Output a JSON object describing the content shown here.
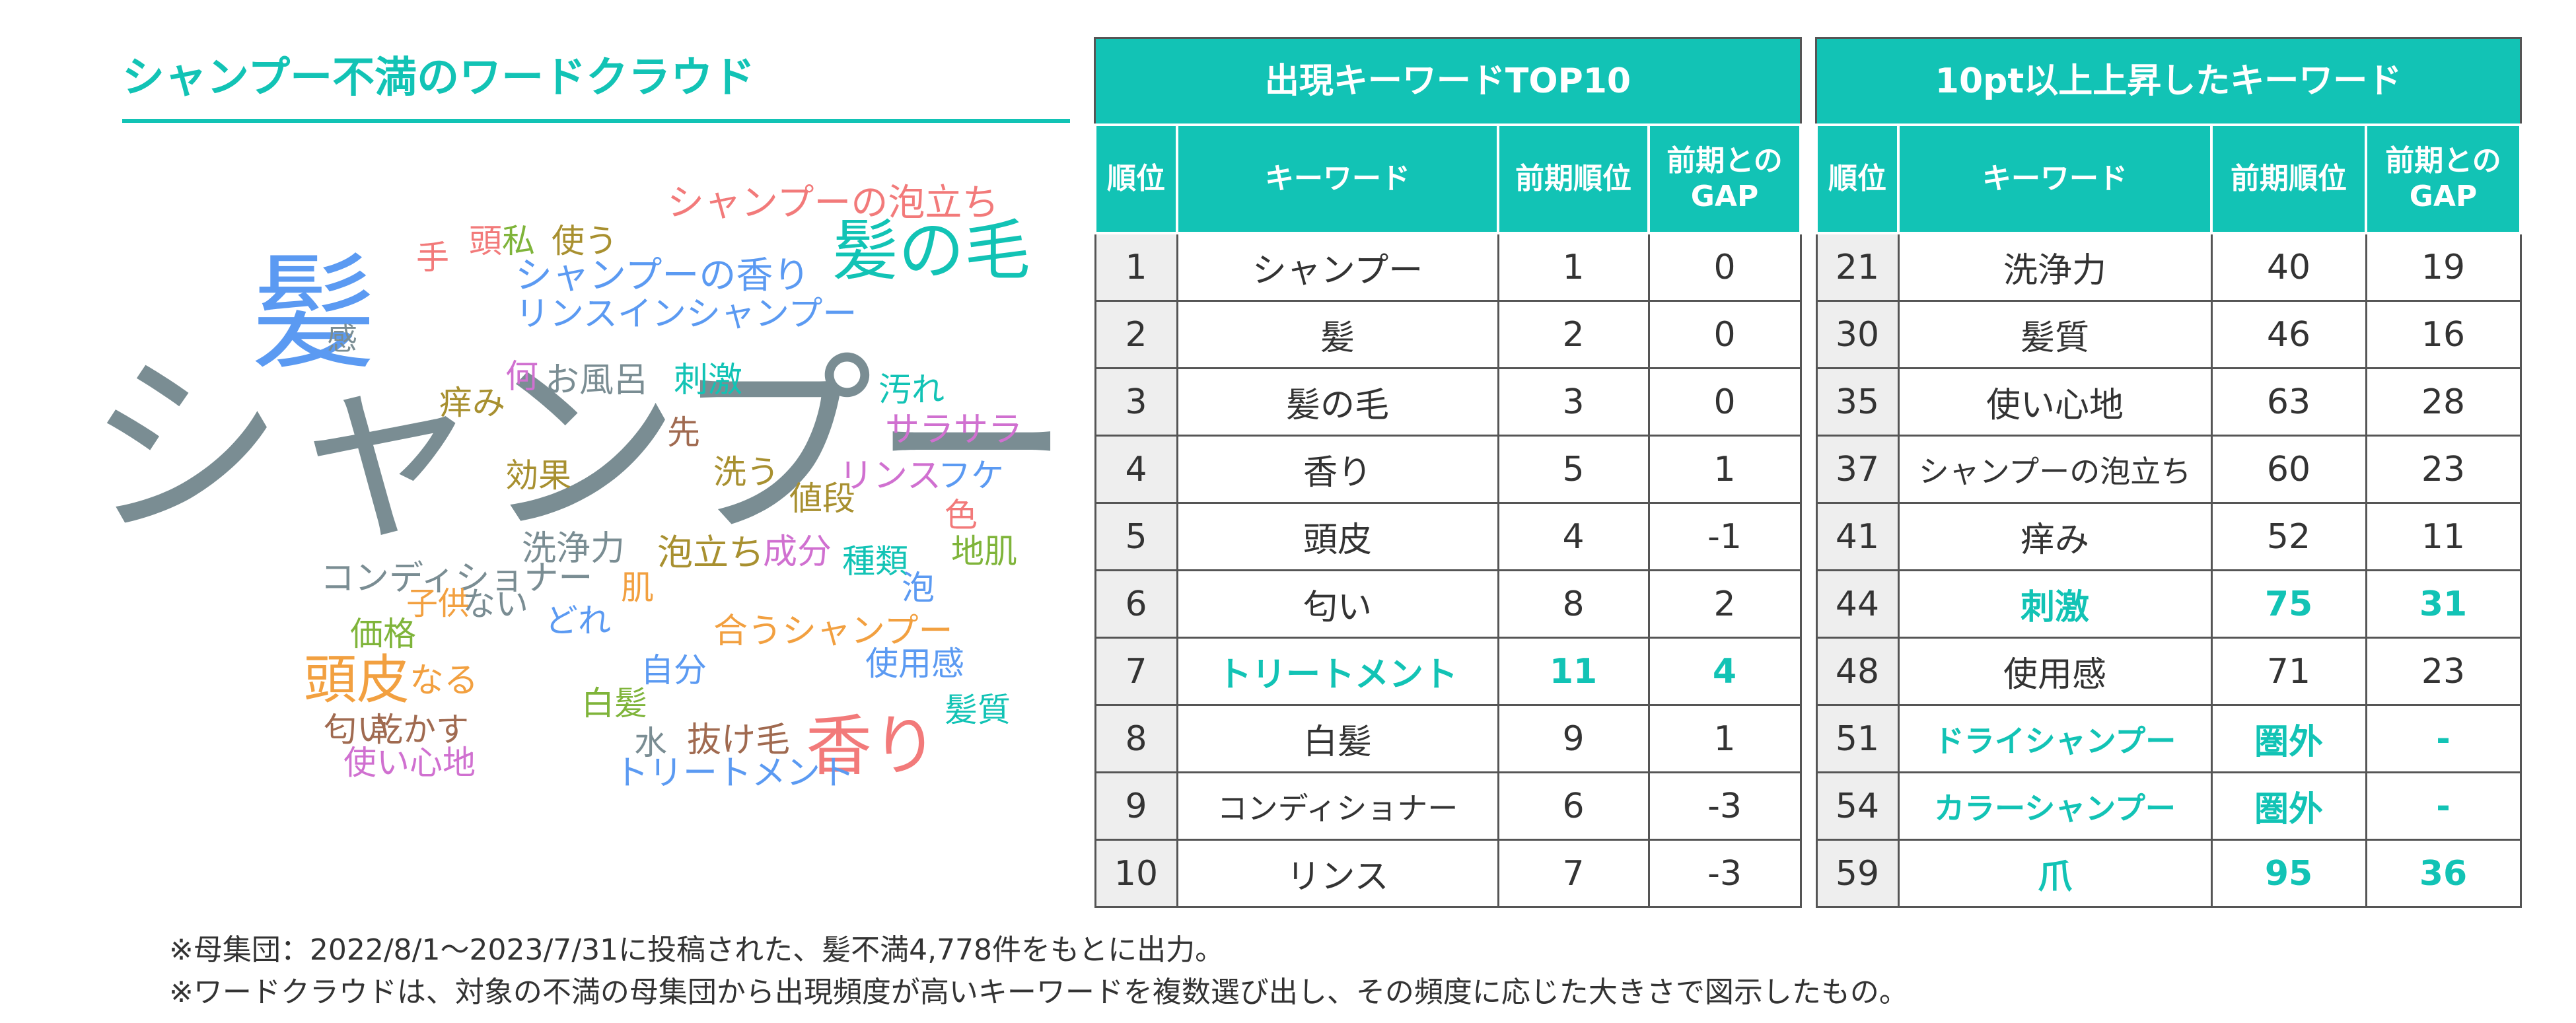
{
  "wordcloud": {
    "title": "シャンプー不満のワードクラウド",
    "words": [
      {
        "text": "シャンプー",
        "size": 300,
        "color": "#7a8d93"
      },
      {
        "text": "髪",
        "size": 190,
        "color": "#5b9af2"
      },
      {
        "text": "髪の毛",
        "size": 100,
        "color": "#12c3b5"
      },
      {
        "text": "香り",
        "size": 100,
        "color": "#f27a7a"
      },
      {
        "text": "シャンプーの泡立ち",
        "size": 56,
        "color": "#f27a7a"
      },
      {
        "text": "シャンプーの香り",
        "size": 56,
        "color": "#5b9af2"
      },
      {
        "text": "リンスインシャンプー",
        "size": 52,
        "color": "#5b9af2"
      },
      {
        "text": "頭",
        "size": 50,
        "color": "#f27a7a"
      },
      {
        "text": "私",
        "size": 50,
        "color": "#7fb43a"
      },
      {
        "text": "使う",
        "size": 50,
        "color": "#a89030"
      },
      {
        "text": "手",
        "size": 50,
        "color": "#f27a7a"
      },
      {
        "text": "感",
        "size": 46,
        "color": "#7a8d93"
      },
      {
        "text": "何",
        "size": 50,
        "color": "#d070d0"
      },
      {
        "text": "お風呂",
        "size": 52,
        "color": "#7a8d93"
      },
      {
        "text": "刺激",
        "size": 52,
        "color": "#12c3b5"
      },
      {
        "text": "洗う",
        "size": 50,
        "color": "#a89030"
      },
      {
        "text": "リンス",
        "size": 52,
        "color": "#d070d0"
      },
      {
        "text": "痒み",
        "size": 50,
        "color": "#a89030"
      },
      {
        "text": "汚れ",
        "size": 50,
        "color": "#12c3b5"
      },
      {
        "text": "サラサラ",
        "size": 52,
        "color": "#d070d0"
      },
      {
        "text": "先",
        "size": 50,
        "color": "#a06a50"
      },
      {
        "text": "効果",
        "size": 50,
        "color": "#a89030"
      },
      {
        "text": "フケ",
        "size": 50,
        "color": "#5b9af2"
      },
      {
        "text": "値段",
        "size": 50,
        "color": "#a89030"
      },
      {
        "text": "色",
        "size": 50,
        "color": "#f27a7a"
      },
      {
        "text": "洗浄力",
        "size": 52,
        "color": "#7a8d93"
      },
      {
        "text": "泡立ち",
        "size": 54,
        "color": "#a89030"
      },
      {
        "text": "成分",
        "size": 52,
        "color": "#d070d0"
      },
      {
        "text": "種類",
        "size": 50,
        "color": "#12c3b5"
      },
      {
        "text": "地肌",
        "size": 50,
        "color": "#7fb43a"
      },
      {
        "text": "コンディショナー",
        "size": 52,
        "color": "#7a8d93"
      },
      {
        "text": "肌",
        "size": 50,
        "color": "#f2a040"
      },
      {
        "text": "泡",
        "size": 50,
        "color": "#5b9af2"
      },
      {
        "text": "子供",
        "size": 48,
        "color": "#f2a040"
      },
      {
        "text": "ない",
        "size": 50,
        "color": "#7a8d93"
      },
      {
        "text": "どれ",
        "size": 50,
        "color": "#5b9af2"
      },
      {
        "text": "合うシャンプー",
        "size": 52,
        "color": "#f2a040"
      },
      {
        "text": "価格",
        "size": 50,
        "color": "#7fb43a"
      },
      {
        "text": "使用感",
        "size": 50,
        "color": "#5b9af2"
      },
      {
        "text": "頭皮",
        "size": 80,
        "color": "#f2a040"
      },
      {
        "text": "なる",
        "size": 52,
        "color": "#f2a040"
      },
      {
        "text": "自分",
        "size": 50,
        "color": "#5b9af2"
      },
      {
        "text": "白髪",
        "size": 50,
        "color": "#7fb43a"
      },
      {
        "text": "髪質",
        "size": 50,
        "color": "#12c3b5"
      },
      {
        "text": "匂い",
        "size": 50,
        "color": "#a06a50"
      },
      {
        "text": "乾かす",
        "size": 50,
        "color": "#a06a50"
      },
      {
        "text": "水",
        "size": 50,
        "color": "#7a8d93"
      },
      {
        "text": "抜け毛",
        "size": 52,
        "color": "#a06a50"
      },
      {
        "text": "使い心地",
        "size": 50,
        "color": "#d070d0"
      },
      {
        "text": "トリートメント",
        "size": 52,
        "color": "#5b9af2"
      }
    ]
  },
  "top10": {
    "title": "出現キーワードTOP10",
    "headers": [
      "順位",
      "キーワード",
      "前期順位",
      "前期との\nGAP"
    ],
    "rows": [
      {
        "rank": "1",
        "keyword": "シャンプー",
        "prev": "1",
        "gap": "0",
        "highlight": false
      },
      {
        "rank": "2",
        "keyword": "髪",
        "prev": "2",
        "gap": "0",
        "highlight": false
      },
      {
        "rank": "3",
        "keyword": "髪の毛",
        "prev": "3",
        "gap": "0",
        "highlight": false
      },
      {
        "rank": "4",
        "keyword": "香り",
        "prev": "5",
        "gap": "1",
        "highlight": false
      },
      {
        "rank": "5",
        "keyword": "頭皮",
        "prev": "4",
        "gap": "-1",
        "highlight": false
      },
      {
        "rank": "6",
        "keyword": "匂い",
        "prev": "8",
        "gap": "2",
        "highlight": false
      },
      {
        "rank": "7",
        "keyword": "トリートメント",
        "prev": "11",
        "gap": "4",
        "highlight": true
      },
      {
        "rank": "8",
        "keyword": "白髪",
        "prev": "9",
        "gap": "1",
        "highlight": false
      },
      {
        "rank": "9",
        "keyword": "コンディショナー",
        "prev": "6",
        "gap": "-3",
        "highlight": false
      },
      {
        "rank": "10",
        "keyword": "リンス",
        "prev": "7",
        "gap": "-3",
        "highlight": false
      }
    ]
  },
  "rising": {
    "title": "10pt以上上昇したキーワード",
    "headers": [
      "順位",
      "キーワード",
      "前期順位",
      "前期との\nGAP"
    ],
    "rows": [
      {
        "rank": "21",
        "keyword": "洗浄力",
        "prev": "40",
        "gap": "19",
        "highlight": false
      },
      {
        "rank": "30",
        "keyword": "髪質",
        "prev": "46",
        "gap": "16",
        "highlight": false
      },
      {
        "rank": "35",
        "keyword": "使い心地",
        "prev": "63",
        "gap": "28",
        "highlight": false
      },
      {
        "rank": "37",
        "keyword": "シャンプーの泡立ち",
        "prev": "60",
        "gap": "23",
        "highlight": false
      },
      {
        "rank": "41",
        "keyword": "痒み",
        "prev": "52",
        "gap": "11",
        "highlight": false
      },
      {
        "rank": "44",
        "keyword": "刺激",
        "prev": "75",
        "gap": "31",
        "highlight": true
      },
      {
        "rank": "48",
        "keyword": "使用感",
        "prev": "71",
        "gap": "23",
        "highlight": false
      },
      {
        "rank": "51",
        "keyword": "ドライシャンプー",
        "prev": "圏外",
        "gap": "-",
        "highlight": true
      },
      {
        "rank": "54",
        "keyword": "カラーシャンプー",
        "prev": "圏外",
        "gap": "-",
        "highlight": true
      },
      {
        "rank": "59",
        "keyword": "爪",
        "prev": "95",
        "gap": "36",
        "highlight": true
      }
    ]
  },
  "notes": [
    "※母集団：2022/8/1～2023/7/31に投稿された、髪不満4,778件をもとに出力。",
    "※ワードクラウドは、対象の不満の母集団から出現頻度が高いキーワードを複数選び出し、その頻度に応じた大きさで図示したもの。"
  ],
  "colors": {
    "accent": "#12c3b5",
    "header_text": "#ffffff",
    "rank_bg": "#eeeeee"
  }
}
